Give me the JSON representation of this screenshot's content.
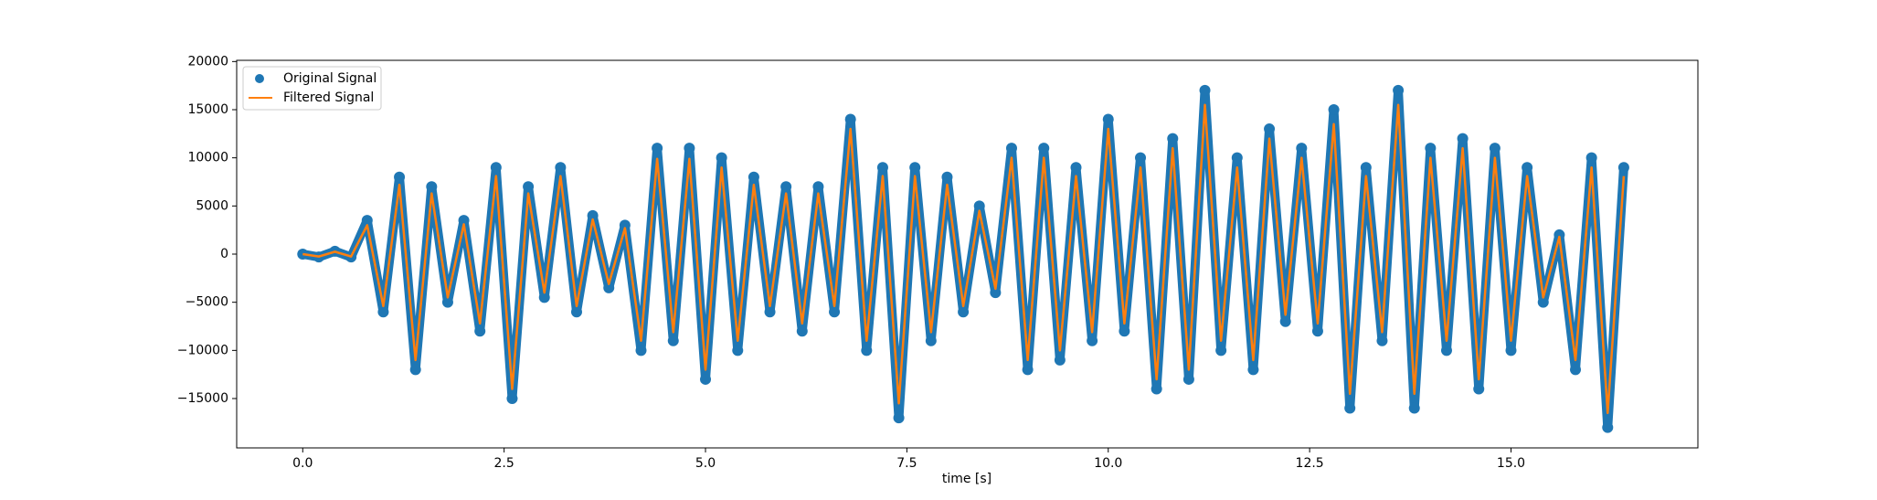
{
  "chart_data": {
    "type": "line",
    "xlabel": "time [s]",
    "x": [
      0,
      0.2,
      0.4,
      0.6,
      0.8,
      1.0,
      1.2,
      1.4,
      1.6,
      1.8,
      2.0,
      2.2,
      2.4,
      2.6,
      2.8,
      3.0,
      3.2,
      3.4,
      3.6,
      3.8,
      4.0,
      4.2,
      4.4,
      4.6,
      4.8,
      5.0,
      5.2,
      5.4,
      5.6,
      5.8,
      6.0,
      6.2,
      6.4,
      6.6,
      6.8,
      7.0,
      7.2,
      7.4,
      7.6,
      7.8,
      8.0,
      8.2,
      8.4,
      8.6,
      8.8,
      9.0,
      9.2,
      9.4,
      9.6,
      9.8,
      10.0,
      10.2,
      10.4,
      10.6,
      10.8,
      11.0,
      11.2,
      11.4,
      11.6,
      11.8,
      12.0,
      12.2,
      12.4,
      12.6,
      12.8,
      13.0,
      13.2,
      13.4,
      13.6,
      13.8,
      14.0,
      14.2,
      14.4,
      14.6,
      14.8,
      15.0,
      15.2,
      15.4,
      15.6,
      15.8,
      16.0,
      16.2,
      16.4
    ],
    "series": [
      {
        "name": "Original Signal",
        "color": "#1f77b4",
        "style": "markers",
        "values": [
          0,
          -300,
          300,
          -300,
          3500,
          -6000,
          8000,
          -12000,
          7000,
          -5000,
          3500,
          -8000,
          9000,
          -15000,
          7000,
          -4500,
          9000,
          -6000,
          4000,
          -3500,
          3000,
          -10000,
          11000,
          -9000,
          11000,
          -13000,
          10000,
          -10000,
          8000,
          -6000,
          7000,
          -8000,
          7000,
          -6000,
          14000,
          -10000,
          9000,
          -17000,
          9000,
          -9000,
          8000,
          -6000,
          5000,
          -4000,
          11000,
          -12000,
          11000,
          -11000,
          9000,
          -9000,
          14000,
          -8000,
          10000,
          -14000,
          12000,
          -13000,
          17000,
          -10000,
          10000,
          -12000,
          13000,
          -7000,
          11000,
          -8000,
          15000,
          -16000,
          9000,
          -9000,
          17000,
          -16000,
          11000,
          -10000,
          12000,
          -14000,
          11000,
          -10000,
          9000,
          -5000,
          2000,
          -12000,
          10000,
          -18000,
          9000
        ]
      },
      {
        "name": "Filtered Signal",
        "color": "#ff7f0e",
        "style": "line",
        "values": [
          0,
          -250,
          250,
          -250,
          3000,
          -5400,
          7200,
          -11000,
          6300,
          -4500,
          3100,
          -7200,
          8100,
          -14000,
          6300,
          -4000,
          8100,
          -5400,
          3600,
          -3100,
          2700,
          -9000,
          9900,
          -8100,
          9900,
          -12000,
          9000,
          -9000,
          7200,
          -5400,
          6300,
          -7200,
          6300,
          -5400,
          13000,
          -9000,
          8100,
          -15500,
          8100,
          -8100,
          7200,
          -5400,
          4500,
          -3600,
          10000,
          -11000,
          10000,
          -10000,
          8100,
          -8100,
          13000,
          -7200,
          9000,
          -13000,
          11000,
          -12000,
          15500,
          -9000,
          9000,
          -11000,
          12000,
          -6300,
          10000,
          -7200,
          13500,
          -14500,
          8100,
          -8100,
          15500,
          -14500,
          10000,
          -9000,
          11000,
          -13000,
          10000,
          -9000,
          8100,
          -4500,
          1800,
          -11000,
          9000,
          -16500,
          8100
        ]
      }
    ],
    "xlim": [
      -0.82,
      17.32
    ],
    "xticks": [
      {
        "value": 0,
        "label": "0.0"
      },
      2.5,
      {
        "value": 5,
        "label": "5.0"
      },
      7.5,
      {
        "value": 10,
        "label": "10.0"
      },
      12.5,
      {
        "value": 15,
        "label": "15.0"
      }
    ],
    "ylim": [
      -20125,
      20125
    ],
    "yticks": [
      {
        "value": -15000,
        "label": "−15000"
      },
      {
        "value": -10000,
        "label": "−10000"
      },
      {
        "value": -5000,
        "label": "−5000"
      },
      0,
      5000,
      10000,
      15000,
      20000
    ],
    "grid": false,
    "legend": "upper left"
  }
}
